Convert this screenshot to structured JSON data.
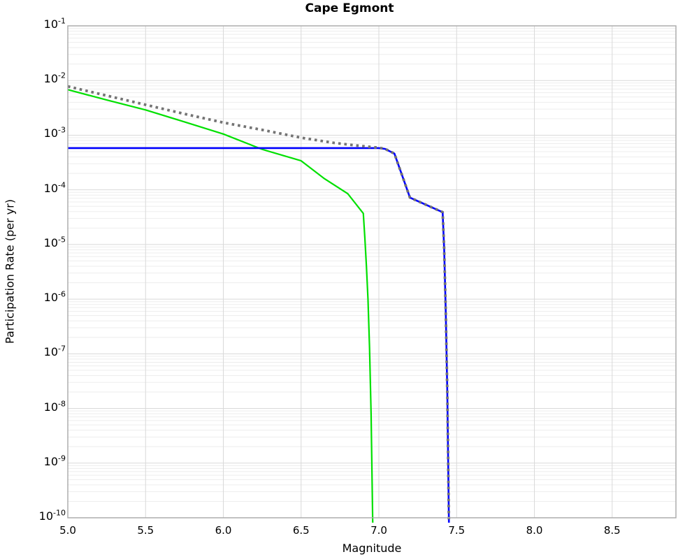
{
  "figure": {
    "title": "Cape Egmont",
    "xlabel": "Magnitude",
    "ylabel": "Participation Rate (per yr)"
  },
  "style": {
    "background": "#ffffff",
    "frame_color": "#a8a8a8",
    "grid_major_color": "#d9d9d9",
    "grid_minor_color": "#ededed",
    "text_color": "#000000"
  },
  "chart_data": {
    "type": "line",
    "title": "Cape Egmont",
    "xlabel": "Magnitude",
    "ylabel": "Participation Rate (per yr)",
    "x_scale": "linear",
    "y_scale": "log",
    "xlim": [
      5.0,
      8.91
    ],
    "ylim": [
      1e-10,
      0.1
    ],
    "legend": "none",
    "grid": {
      "vertical_major": true,
      "horizontal_log_decades": true,
      "horizontal_log_minor": true
    },
    "x_ticks": [
      {
        "value": 5.0,
        "label": "5.0"
      },
      {
        "value": 5.5,
        "label": "5.5"
      },
      {
        "value": 6.0,
        "label": "6.0"
      },
      {
        "value": 6.5,
        "label": "6.5"
      },
      {
        "value": 7.0,
        "label": "7.0"
      },
      {
        "value": 7.5,
        "label": "7.5"
      },
      {
        "value": 8.0,
        "label": "8.0"
      },
      {
        "value": 8.5,
        "label": "8.5"
      }
    ],
    "y_ticks": [
      {
        "base": "10",
        "exp": "-1",
        "value": 0.1
      },
      {
        "base": "10",
        "exp": "-2",
        "value": 0.01
      },
      {
        "base": "10",
        "exp": "-3",
        "value": 0.001
      },
      {
        "base": "10",
        "exp": "-4",
        "value": 0.0001
      },
      {
        "base": "10",
        "exp": "-5",
        "value": 1e-05
      },
      {
        "base": "10",
        "exp": "-6",
        "value": 1e-06
      },
      {
        "base": "10",
        "exp": "-7",
        "value": 1e-07
      },
      {
        "base": "10",
        "exp": "-8",
        "value": 1e-08
      },
      {
        "base": "10",
        "exp": "-9",
        "value": 1e-09
      },
      {
        "base": "10",
        "exp": "-10",
        "value": 1e-10
      }
    ],
    "series": [
      {
        "name": "green-solid-curve",
        "color": "#00e000",
        "style": "solid",
        "width": 2.2,
        "points": [
          [
            5.0,
            0.0068
          ],
          [
            5.25,
            0.0044
          ],
          [
            5.5,
            0.0029
          ],
          [
            5.75,
            0.00175
          ],
          [
            6.0,
            0.00105
          ],
          [
            6.25,
            0.00055
          ],
          [
            6.5,
            0.00034
          ],
          [
            6.65,
            0.00016
          ],
          [
            6.8,
            8.5e-05
          ],
          [
            6.9,
            3.7e-05
          ],
          [
            6.91,
            1.3e-05
          ],
          [
            6.92,
            4e-06
          ],
          [
            6.93,
            1e-06
          ],
          [
            6.94,
            1.3e-07
          ],
          [
            6.95,
            8e-09
          ],
          [
            6.96,
            1e-10
          ],
          [
            6.963,
            4e-11
          ]
        ]
      },
      {
        "name": "blue-solid-curve",
        "color": "#0000ff",
        "style": "solid",
        "width": 2.6,
        "points": [
          [
            5.0,
            0.00058
          ],
          [
            7.0,
            0.00058
          ],
          [
            7.04,
            0.00056
          ],
          [
            7.1,
            0.00046
          ],
          [
            7.2,
            7.2e-05
          ],
          [
            7.41,
            3.9e-05
          ],
          [
            7.42,
            8e-06
          ],
          [
            7.43,
            6e-07
          ],
          [
            7.44,
            2e-08
          ],
          [
            7.45,
            1e-10
          ],
          [
            7.452,
            4e-11
          ]
        ]
      },
      {
        "name": "gray-dotted-curve",
        "color": "#747474",
        "style": "dotted",
        "width": 3.8,
        "points": [
          [
            5.0,
            0.0078
          ],
          [
            5.25,
            0.0053
          ],
          [
            5.5,
            0.0036
          ],
          [
            5.75,
            0.00245
          ],
          [
            6.0,
            0.0017
          ],
          [
            6.25,
            0.00125
          ],
          [
            6.5,
            0.0009
          ],
          [
            6.7,
            0.00073
          ],
          [
            6.85,
            0.00065
          ],
          [
            7.0,
            0.00059
          ],
          [
            7.04,
            0.00056
          ],
          [
            7.1,
            0.00046
          ],
          [
            7.2,
            7.2e-05
          ],
          [
            7.41,
            3.9e-05
          ],
          [
            7.42,
            8e-06
          ],
          [
            7.43,
            6e-07
          ],
          [
            7.44,
            2e-08
          ],
          [
            7.45,
            1e-10
          ],
          [
            7.452,
            4e-11
          ]
        ]
      }
    ]
  }
}
